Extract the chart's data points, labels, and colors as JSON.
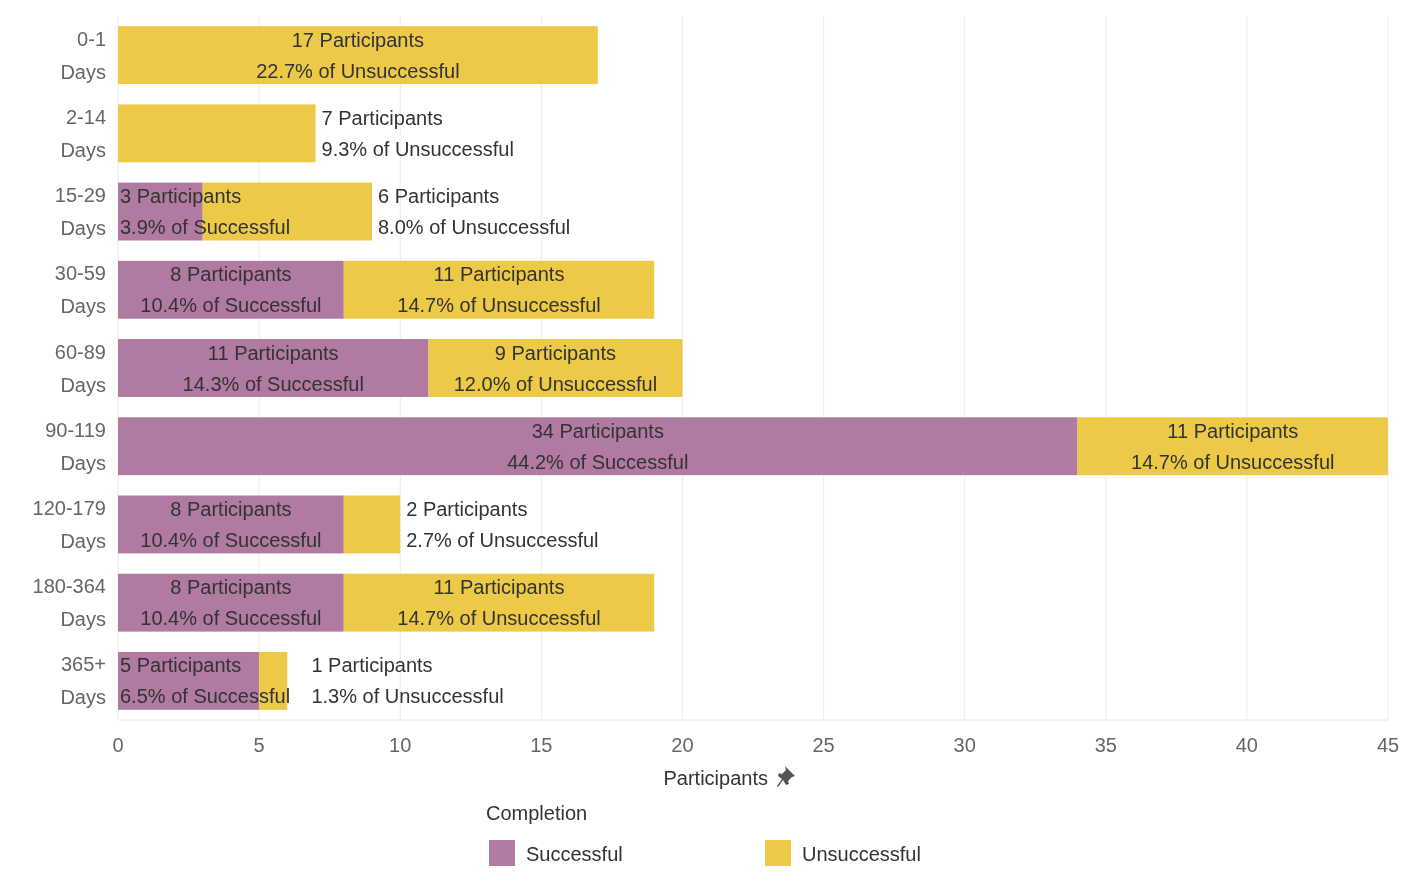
{
  "chart_data": {
    "type": "bar",
    "orientation": "horizontal",
    "stacked": true,
    "categories": [
      "0-1 Days",
      "2-14 Days",
      "15-29 Days",
      "30-59 Days",
      "60-89 Days",
      "90-119 Days",
      "120-179 Days",
      "180-364 Days",
      "365+ Days"
    ],
    "series": [
      {
        "name": "Successful",
        "color": "#b07aa1",
        "values": [
          null,
          null,
          3,
          8,
          11,
          34,
          8,
          8,
          5
        ],
        "value_labels": [
          null,
          null,
          "3 Participants\n3.9% of Successful",
          "8 Participants\n10.4% of Successful",
          "11 Participants\n14.3% of Successful",
          "34 Participants\n44.2% of Successful",
          "8 Participants\n10.4% of Successful",
          "8 Participants\n10.4% of Successful",
          "5 Participants\n6.5% of Successful"
        ]
      },
      {
        "name": "Unsuccessful",
        "color": "#edc948",
        "values": [
          17,
          7,
          6,
          11,
          9,
          11,
          2,
          11,
          1
        ],
        "value_labels": [
          "17 Participants\n22.7% of Unsuccessful",
          "7 Participants\n9.3% of Unsuccessful",
          "6 Participants\n8.0% of Unsuccessful",
          "11 Participants\n14.7% of Unsuccessful",
          "9 Participants\n12.0% of Unsuccessful",
          "11 Participants\n14.7% of Unsuccessful",
          "2 Participants\n2.7% of Unsuccessful",
          "11 Participants\n14.7% of Unsuccessful",
          "1 Participants\n1.3% of Unsuccessful"
        ]
      }
    ],
    "xlim": [
      0,
      45
    ],
    "xticks": [
      0,
      5,
      10,
      15,
      20,
      25,
      30,
      35,
      40,
      45
    ],
    "xlabel": "Participants",
    "grid": "x",
    "legend": "bottom",
    "legend_title": "Completion"
  }
}
